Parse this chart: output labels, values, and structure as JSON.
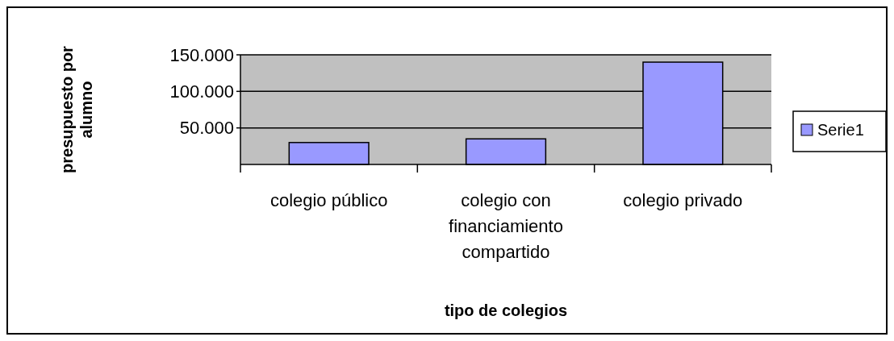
{
  "chart_data": {
    "type": "bar",
    "xlabel": "tipo de colegios",
    "ylabel": "presupuesto por alumno",
    "categories": [
      "colegio público",
      "colegio con financiamiento compartido",
      "colegio privado"
    ],
    "series": [
      {
        "name": "Serie1",
        "color": "#9999ff",
        "values": [
          30000,
          35000,
          140000
        ]
      }
    ],
    "ylim": [
      0,
      150000
    ],
    "yticks": [
      {
        "value": 50000,
        "label": "50.000"
      },
      {
        "value": 100000,
        "label": "100.000"
      },
      {
        "value": 150000,
        "label": "150.000"
      }
    ],
    "grid": "y",
    "legend": "right"
  }
}
